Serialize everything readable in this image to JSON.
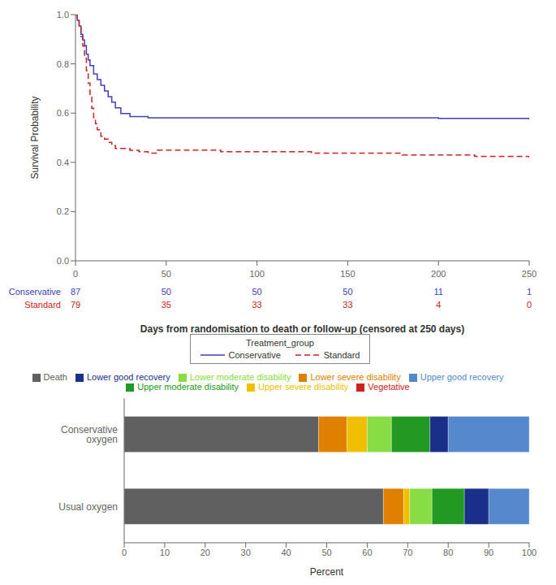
{
  "chart_data": [
    {
      "type": "line",
      "xlabel": "Days from randomisation to death or follow-up (censored at 250 days)",
      "ylabel": "Survival Probability",
      "xlim": [
        0,
        250
      ],
      "xticks": [
        0,
        50,
        100,
        150,
        200,
        250
      ],
      "ylim": [
        0.0,
        1.0
      ],
      "yticks": [
        {
          "value": 0.0,
          "label": "0.0"
        },
        {
          "value": 0.2,
          "label": "0.2"
        },
        {
          "value": 0.4,
          "label": "0.4"
        },
        {
          "value": 0.6,
          "label": "0.6"
        },
        {
          "value": 0.8,
          "label": "0.8"
        },
        {
          "value": 1.0,
          "label": "1.0"
        }
      ],
      "grid": false,
      "legend": "bottom",
      "legend_title": "Treatment_group",
      "series": [
        {
          "name": "Conservative",
          "color": "#4040bb",
          "line_style": "solid",
          "x": [
            0,
            1,
            2,
            3,
            4,
            5,
            6,
            7,
            8,
            10,
            12,
            14,
            16,
            18,
            20,
            22,
            25,
            30,
            35,
            40,
            45,
            50,
            70,
            100,
            130,
            150,
            180,
            200,
            220,
            250
          ],
          "values": [
            1.0,
            0.977,
            0.954,
            0.92,
            0.897,
            0.874,
            0.839,
            0.816,
            0.793,
            0.759,
            0.736,
            0.713,
            0.69,
            0.667,
            0.644,
            0.621,
            0.598,
            0.586,
            0.586,
            0.581,
            0.581,
            0.581,
            0.581,
            0.581,
            0.581,
            0.581,
            0.581,
            0.578,
            0.578,
            0.574
          ]
        },
        {
          "name": "Standard",
          "color": "#cc2222",
          "line_style": "dashed",
          "x": [
            0,
            1,
            2,
            3,
            4,
            5,
            6,
            7,
            8,
            9,
            10,
            11,
            12,
            14,
            16,
            18,
            20,
            22,
            25,
            30,
            35,
            40,
            45,
            50,
            60,
            80,
            100,
            130,
            150,
            180,
            200,
            220,
            250
          ],
          "values": [
            1.0,
            0.975,
            0.949,
            0.911,
            0.873,
            0.823,
            0.772,
            0.722,
            0.671,
            0.62,
            0.582,
            0.557,
            0.532,
            0.506,
            0.494,
            0.481,
            0.468,
            0.456,
            0.456,
            0.449,
            0.443,
            0.437,
            0.45,
            0.45,
            0.45,
            0.443,
            0.443,
            0.437,
            0.437,
            0.43,
            0.43,
            0.424,
            0.418
          ]
        }
      ],
      "at_risk": {
        "times": [
          0,
          50,
          100,
          150,
          200,
          250
        ],
        "rows": [
          {
            "name": "Conservative",
            "color": "#4040bb",
            "values": [
              87,
              50,
              50,
              50,
              11,
              1
            ]
          },
          {
            "name": "Standard",
            "color": "#cc2222",
            "values": [
              79,
              35,
              33,
              33,
              4,
              0
            ]
          }
        ]
      }
    },
    {
      "type": "bar",
      "orientation": "horizontal",
      "stacked": true,
      "grid": false,
      "legend": "top",
      "xlabel": "Percent",
      "xlim": [
        0,
        100
      ],
      "xticks": [
        0,
        10,
        20,
        30,
        40,
        50,
        60,
        70,
        80,
        90,
        100
      ],
      "categories": [
        "Conservative oxygen",
        "Usual oxygen"
      ],
      "series": [
        {
          "name": "Death",
          "color": "#606060",
          "values": [
            48.0,
            64.0
          ]
        },
        {
          "name": "Vegetative",
          "color": "#cc2222",
          "values": [
            0.0,
            0.0
          ]
        },
        {
          "name": "Lower severe disability",
          "color": "#e08000",
          "values": [
            7.0,
            5.0
          ]
        },
        {
          "name": "Upper severe disability",
          "color": "#f0c000",
          "values": [
            5.0,
            1.5
          ]
        },
        {
          "name": "Lower moderate disability",
          "color": "#88dd44",
          "values": [
            6.0,
            5.5
          ]
        },
        {
          "name": "Upper moderate disability",
          "color": "#229922",
          "values": [
            9.5,
            8.0
          ]
        },
        {
          "name": "Lower good recovery",
          "color": "#1a2f8a",
          "values": [
            4.5,
            6.0
          ]
        },
        {
          "name": "Upper good recovery",
          "color": "#5588cc",
          "values": [
            20.0,
            10.0
          ]
        }
      ]
    }
  ]
}
